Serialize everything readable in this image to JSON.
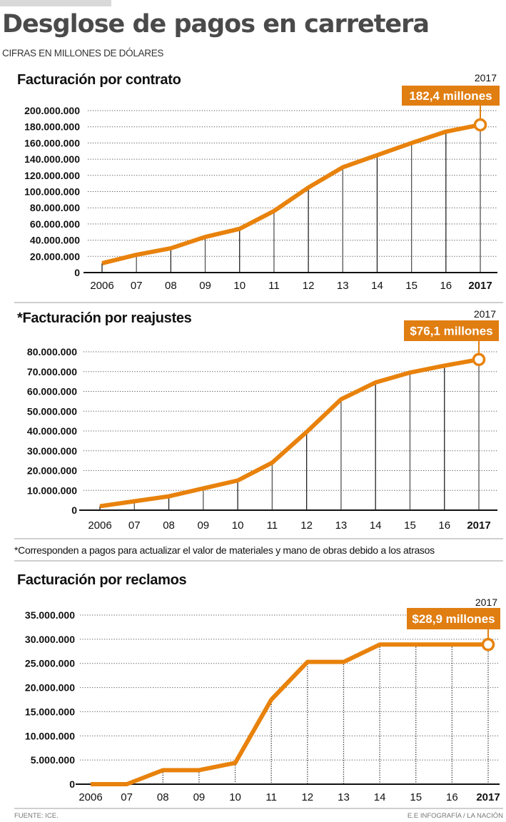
{
  "header": {
    "title": "Desglose de pagos en carretera",
    "subtitle": "CIFRAS EN MILLONES DE DÓLARES"
  },
  "footnote": "*Corresponden a pagos para actualizar el valor de materiales y mano de obras debido a los atrasos",
  "footer": {
    "source": "FUENTE: ICE.",
    "credit": "E.E INFOGRAFÍA / LA NACIÓN"
  },
  "colors": {
    "line": "#E8820C",
    "callout": "#E07E12",
    "axis": "#111111",
    "grid": "#888888",
    "title": "#4a4a4a"
  },
  "chart_data": [
    {
      "type": "line",
      "title": "Facturación por contrato",
      "xlabel": "",
      "ylabel": "",
      "categories": [
        "2006",
        "07",
        "08",
        "09",
        "10",
        "11",
        "12",
        "13",
        "14",
        "15",
        "16",
        "2017"
      ],
      "series": [
        {
          "name": "Facturación por contrato",
          "values": [
            11500000,
            22000000,
            30000000,
            44000000,
            54000000,
            76000000,
            105000000,
            130000000,
            145000000,
            160000000,
            174000000,
            182400000
          ]
        }
      ],
      "yticks": [
        0,
        20000000,
        40000000,
        60000000,
        80000000,
        100000000,
        120000000,
        140000000,
        160000000,
        180000000,
        200000000
      ],
      "ytick_labels": [
        "0",
        "20.000.000",
        "40.000.000",
        "60.000.000",
        "80.000.000",
        "100.000.000",
        "120.000.000",
        "140.000.000",
        "160.000.000",
        "180.000.000",
        "200.000.000"
      ],
      "ylim": [
        0,
        200000000
      ],
      "grid": true,
      "drop_lines": "solid",
      "annotation": {
        "year": "2017",
        "text": "182,4 millones"
      }
    },
    {
      "type": "line",
      "title": "*Facturación por reajustes",
      "xlabel": "",
      "ylabel": "",
      "categories": [
        "2006",
        "07",
        "08",
        "09",
        "10",
        "11",
        "12",
        "13",
        "14",
        "15",
        "16",
        "2017"
      ],
      "series": [
        {
          "name": "Facturación por reajustes",
          "values": [
            2000000,
            4500000,
            7000000,
            11000000,
            15000000,
            24000000,
            39500000,
            56000000,
            64500000,
            69500000,
            73000000,
            76100000
          ]
        }
      ],
      "yticks": [
        0,
        10000000,
        20000000,
        30000000,
        40000000,
        50000000,
        60000000,
        70000000,
        80000000
      ],
      "ytick_labels": [
        "0",
        "10.000.000",
        "20.000.000",
        "30.000.000",
        "40.000.000",
        "50.000.000",
        "60.000.000",
        "70.000.000",
        "80.000.000"
      ],
      "ylim": [
        0,
        80000000
      ],
      "grid": true,
      "drop_lines": "solid",
      "annotation": {
        "year": "2017",
        "text": "$76,1 millones"
      }
    },
    {
      "type": "line",
      "title": "Facturación por reclamos",
      "xlabel": "",
      "ylabel": "",
      "categories": [
        "2006",
        "07",
        "08",
        "09",
        "10",
        "11",
        "12",
        "13",
        "14",
        "15",
        "16",
        "2017"
      ],
      "series": [
        {
          "name": "Facturación por reclamos",
          "values": [
            0,
            0,
            2900000,
            2900000,
            4400000,
            17500000,
            25300000,
            25300000,
            28900000,
            28900000,
            28900000,
            28900000
          ]
        }
      ],
      "yticks": [
        0,
        5000000,
        10000000,
        15000000,
        20000000,
        25000000,
        30000000,
        35000000
      ],
      "ytick_labels": [
        "0",
        "5.000.000",
        "10.000.000",
        "15.000.000",
        "20.000.000",
        "25.000.000",
        "30.000.000",
        "35.000.000"
      ],
      "ylim": [
        0,
        35000000
      ],
      "grid": true,
      "drop_lines": "dotted",
      "annotation": {
        "year": "2017",
        "text": "$28,9 millones"
      }
    }
  ]
}
